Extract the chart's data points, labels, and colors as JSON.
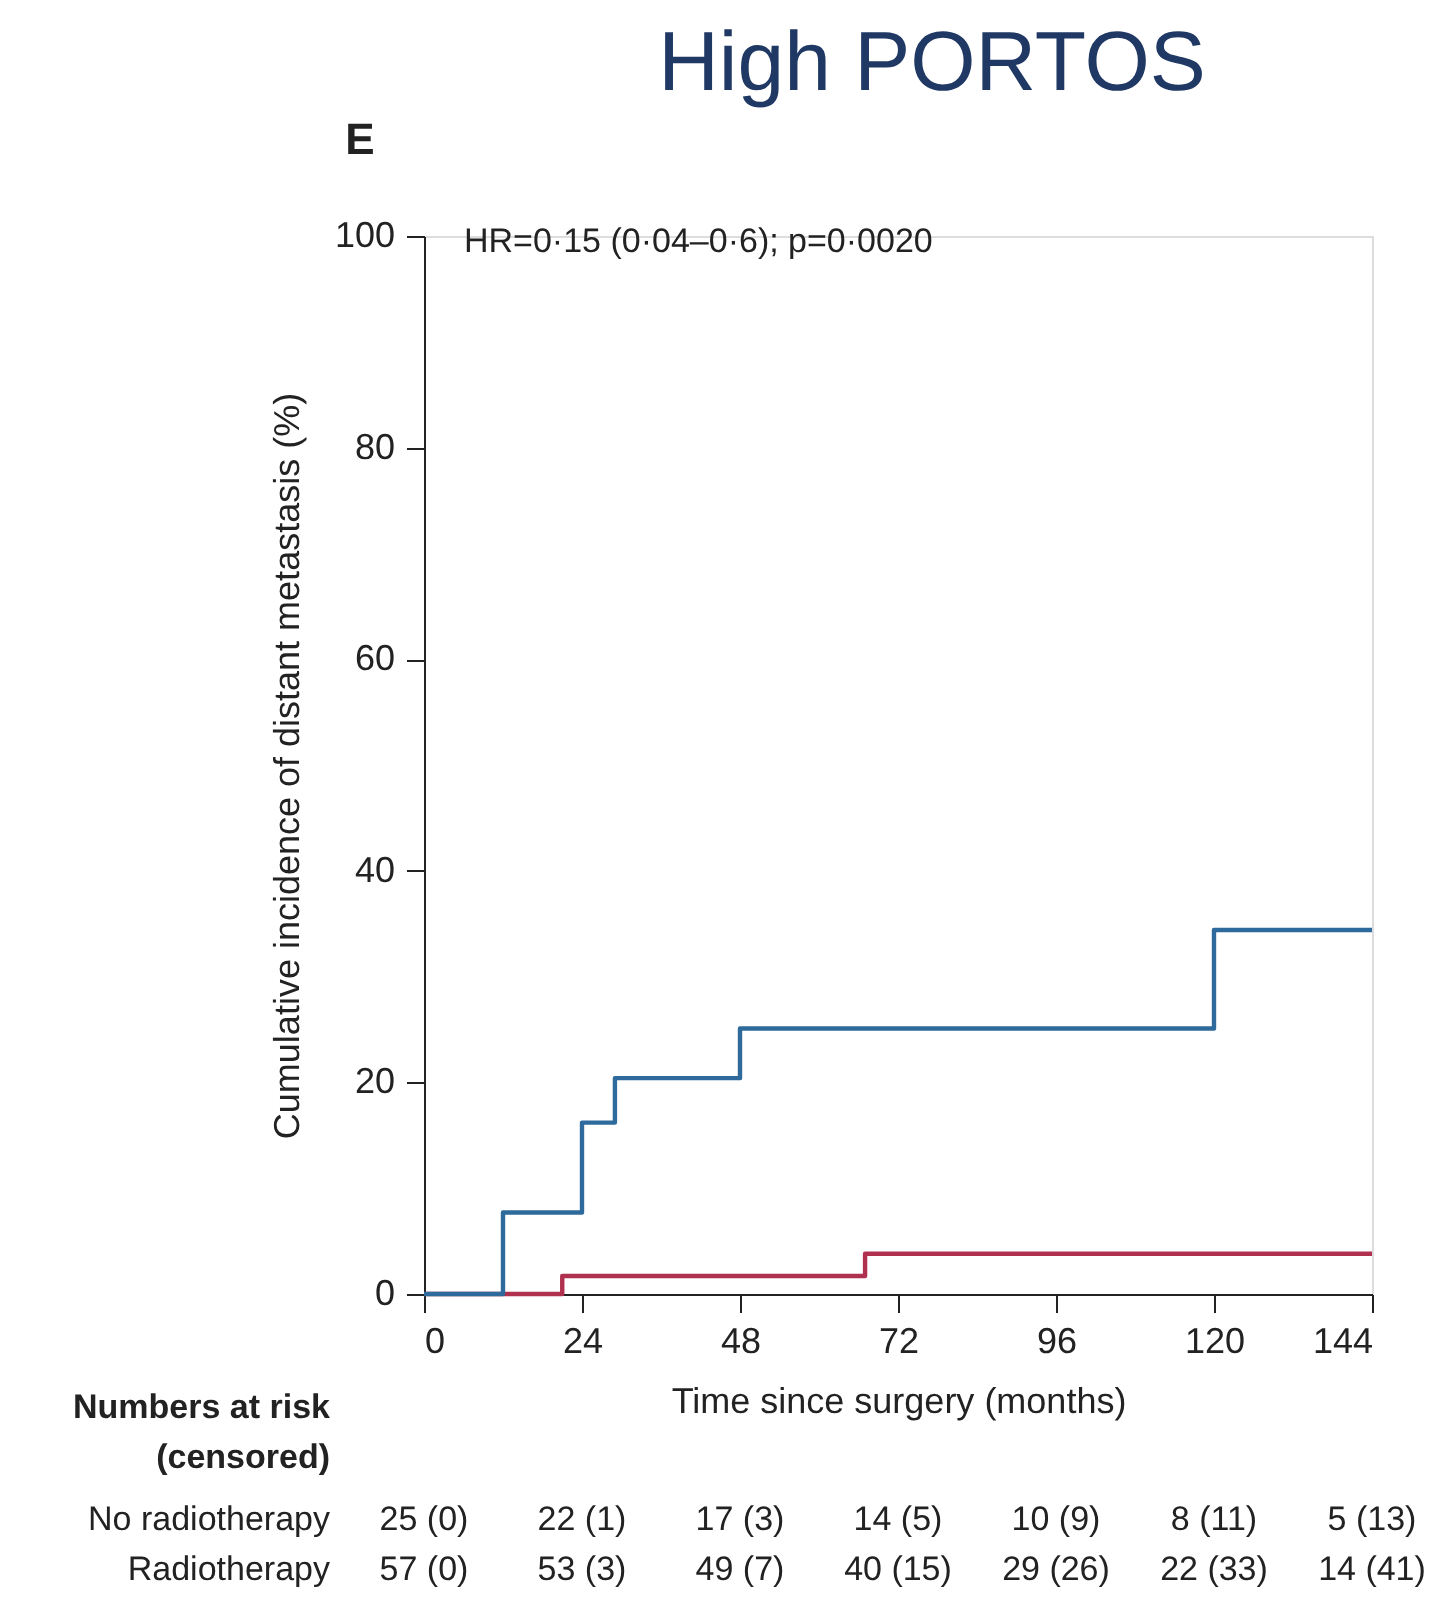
{
  "chart_data": {
    "type": "step",
    "title": "High PORTOS",
    "subtitle": "E",
    "xlabel": "Time since surgery (months)",
    "ylabel": "Cumulative incidence of distant metastasis (%)",
    "series": [
      {
        "name": null,
        "color": "#2e6a9b",
        "x": [
          0,
          12,
          24,
          29,
          48,
          120,
          144
        ],
        "values": [
          0,
          7.7,
          16.2,
          20.4,
          25.1,
          34.4,
          34.4
        ]
      },
      {
        "name": null,
        "color": "#b0304f",
        "x": [
          0,
          21,
          67,
          144
        ],
        "values": [
          0,
          1.7,
          3.8,
          3.8
        ]
      }
    ],
    "xlim": [
      0,
      144
    ],
    "xticks": [
      0,
      24,
      48,
      72,
      96,
      120,
      144
    ],
    "ylim": [
      0,
      100
    ],
    "yticks": [
      0,
      20,
      40,
      60,
      80,
      100
    ],
    "grid": false,
    "marker": "none",
    "line_style": "solid",
    "annotations": [
      "HR=0·15 (0·04–0·6); p=0·0020",
      "Numbers at risk",
      "(censored)",
      "No radiotherapy",
      "25 (0)",
      "22 (1)",
      "17 (3)",
      "14 (5)",
      "10 (9)",
      "8 (11)",
      "5 (13)",
      "Radiotherapy",
      "57 (0)",
      "53 (3)",
      "49 (7)",
      "40 (15)",
      "29 (26)",
      "22 (33)",
      "14 (41)"
    ]
  }
}
